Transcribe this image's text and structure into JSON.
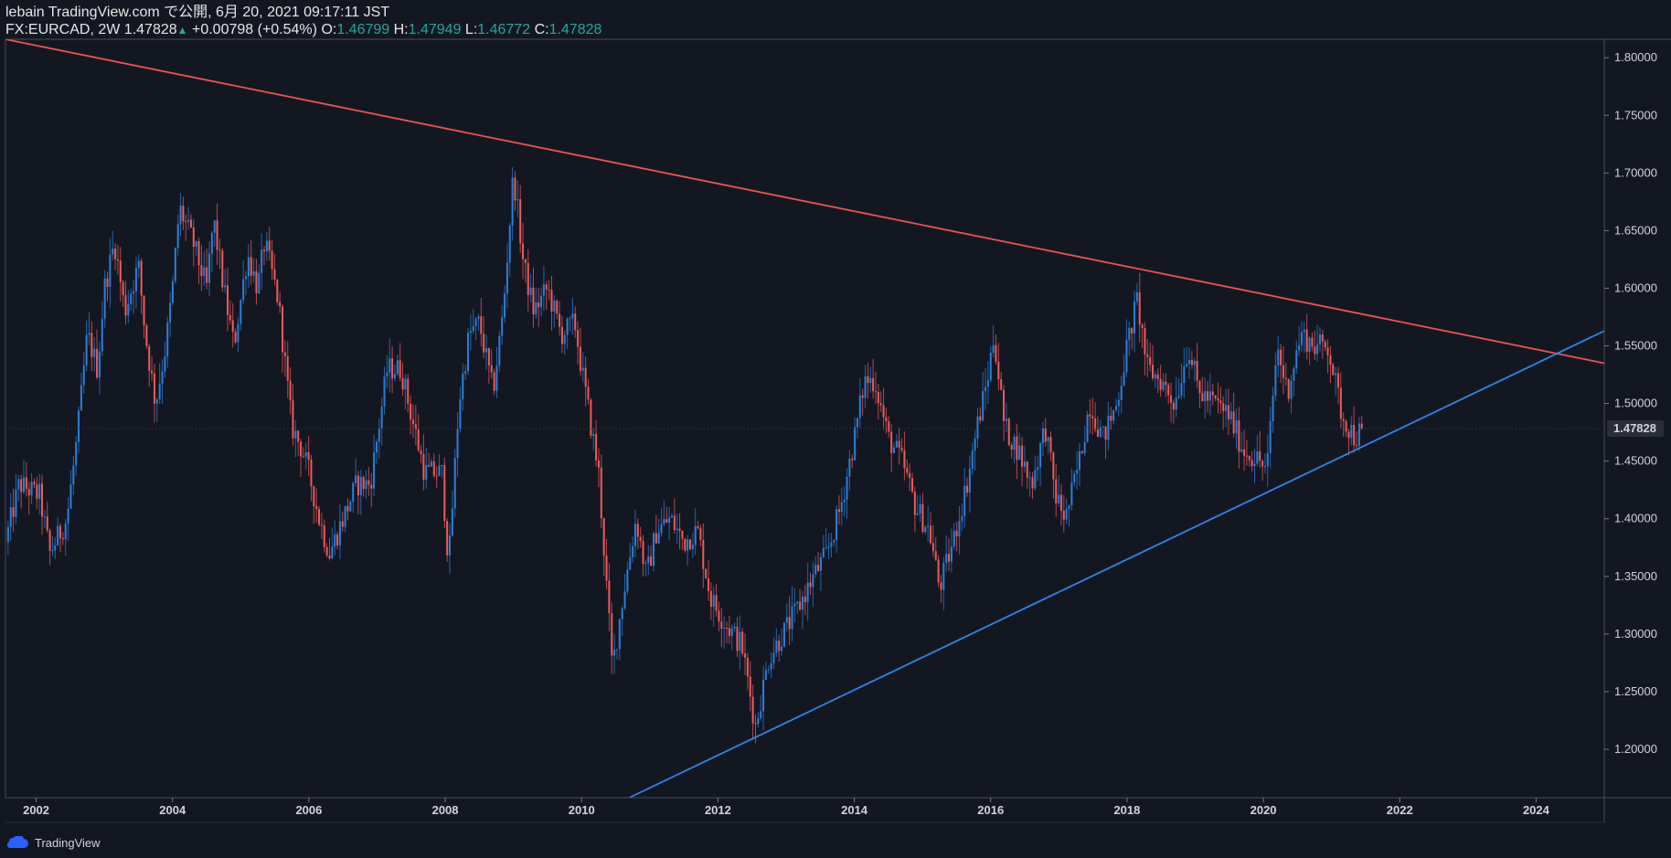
{
  "header": {
    "line1": "lebain TradingView.com で公開, 6月 20, 2021 09:17:11 JST",
    "symbol": "FX:EURCAD, 2W",
    "last": "1.47828",
    "change": "+0.00798 (+0.54%)",
    "o_label": "O:",
    "o_val": "1.46799",
    "h_label": "H:",
    "h_val": "1.47949",
    "l_label": "L:",
    "l_val": "1.46772",
    "c_label": "C:",
    "c_val": "1.47828"
  },
  "footer": {
    "brand": "TradingView"
  },
  "colors": {
    "background": "#131722",
    "up": "#2d7fd8",
    "down": "#ef5b5b",
    "resistance": "#ef5350",
    "support": "#2f86ea",
    "text": "#d1d4dc"
  },
  "chart_data": {
    "type": "candlestick",
    "symbol": "FX:EURCAD",
    "interval": "2W",
    "last_price": "1.47828",
    "xlim": [
      2001.55,
      2025.0
    ],
    "ylim": [
      1.158,
      1.816
    ],
    "x_ticks": [
      "2002",
      "2004",
      "2006",
      "2008",
      "2010",
      "2012",
      "2014",
      "2016",
      "2018",
      "2020",
      "2022",
      "2024"
    ],
    "y_ticks": [
      "1.80000",
      "1.75000",
      "1.70000",
      "1.65000",
      "1.60000",
      "1.55000",
      "1.50000",
      "1.45000",
      "1.40000",
      "1.35000",
      "1.30000",
      "1.25000",
      "1.20000"
    ],
    "close_path": [
      [
        2001.55,
        1.38
      ],
      [
        2001.75,
        1.43
      ],
      [
        2002.05,
        1.42
      ],
      [
        2002.2,
        1.37
      ],
      [
        2002.45,
        1.4
      ],
      [
        2002.6,
        1.47
      ],
      [
        2002.75,
        1.56
      ],
      [
        2002.9,
        1.53
      ],
      [
        2003.0,
        1.6
      ],
      [
        2003.15,
        1.64
      ],
      [
        2003.3,
        1.58
      ],
      [
        2003.5,
        1.62
      ],
      [
        2003.6,
        1.56
      ],
      [
        2003.75,
        1.5
      ],
      [
        2003.9,
        1.55
      ],
      [
        2004.0,
        1.6
      ],
      [
        2004.1,
        1.67
      ],
      [
        2004.3,
        1.64
      ],
      [
        2004.5,
        1.6
      ],
      [
        2004.6,
        1.66
      ],
      [
        2004.75,
        1.6
      ],
      [
        2004.9,
        1.55
      ],
      [
        2005.1,
        1.63
      ],
      [
        2005.25,
        1.6
      ],
      [
        2005.35,
        1.64
      ],
      [
        2005.55,
        1.59
      ],
      [
        2005.75,
        1.48
      ],
      [
        2005.9,
        1.46
      ],
      [
        2006.0,
        1.44
      ],
      [
        2006.15,
        1.4
      ],
      [
        2006.3,
        1.37
      ],
      [
        2006.5,
        1.4
      ],
      [
        2006.7,
        1.43
      ],
      [
        2006.9,
        1.43
      ],
      [
        2007.0,
        1.47
      ],
      [
        2007.15,
        1.53
      ],
      [
        2007.35,
        1.53
      ],
      [
        2007.5,
        1.49
      ],
      [
        2007.7,
        1.44
      ],
      [
        2007.95,
        1.44
      ],
      [
        2008.05,
        1.36
      ],
      [
        2008.2,
        1.5
      ],
      [
        2008.35,
        1.56
      ],
      [
        2008.5,
        1.57
      ],
      [
        2008.7,
        1.51
      ],
      [
        2008.85,
        1.58
      ],
      [
        2009.0,
        1.7
      ],
      [
        2009.15,
        1.62
      ],
      [
        2009.3,
        1.58
      ],
      [
        2009.5,
        1.6
      ],
      [
        2009.7,
        1.56
      ],
      [
        2009.9,
        1.57
      ],
      [
        2010.0,
        1.53
      ],
      [
        2010.25,
        1.44
      ],
      [
        2010.45,
        1.27
      ],
      [
        2010.6,
        1.33
      ],
      [
        2010.8,
        1.4
      ],
      [
        2010.95,
        1.35
      ],
      [
        2011.1,
        1.39
      ],
      [
        2011.3,
        1.4
      ],
      [
        2011.5,
        1.38
      ],
      [
        2011.7,
        1.39
      ],
      [
        2011.9,
        1.33
      ],
      [
        2012.1,
        1.31
      ],
      [
        2012.35,
        1.29
      ],
      [
        2012.55,
        1.22
      ],
      [
        2012.75,
        1.28
      ],
      [
        2012.95,
        1.3
      ],
      [
        2013.15,
        1.32
      ],
      [
        2013.4,
        1.35
      ],
      [
        2013.6,
        1.37
      ],
      [
        2013.8,
        1.41
      ],
      [
        2014.0,
        1.47
      ],
      [
        2014.15,
        1.52
      ],
      [
        2014.3,
        1.52
      ],
      [
        2014.5,
        1.47
      ],
      [
        2014.7,
        1.45
      ],
      [
        2014.9,
        1.41
      ],
      [
        2015.1,
        1.39
      ],
      [
        2015.25,
        1.34
      ],
      [
        2015.45,
        1.38
      ],
      [
        2015.65,
        1.43
      ],
      [
        2015.8,
        1.48
      ],
      [
        2015.95,
        1.52
      ],
      [
        2016.05,
        1.56
      ],
      [
        2016.2,
        1.48
      ],
      [
        2016.4,
        1.46
      ],
      [
        2016.6,
        1.43
      ],
      [
        2016.8,
        1.48
      ],
      [
        2016.95,
        1.42
      ],
      [
        2017.1,
        1.4
      ],
      [
        2017.3,
        1.45
      ],
      [
        2017.45,
        1.5
      ],
      [
        2017.65,
        1.47
      ],
      [
        2017.85,
        1.5
      ],
      [
        2018.0,
        1.55
      ],
      [
        2018.15,
        1.59
      ],
      [
        2018.3,
        1.53
      ],
      [
        2018.5,
        1.52
      ],
      [
        2018.7,
        1.5
      ],
      [
        2018.9,
        1.55
      ],
      [
        2019.05,
        1.51
      ],
      [
        2019.3,
        1.5
      ],
      [
        2019.5,
        1.49
      ],
      [
        2019.7,
        1.46
      ],
      [
        2019.95,
        1.45
      ],
      [
        2020.05,
        1.44
      ],
      [
        2020.2,
        1.55
      ],
      [
        2020.35,
        1.51
      ],
      [
        2020.55,
        1.56
      ],
      [
        2020.75,
        1.55
      ],
      [
        2020.95,
        1.55
      ],
      [
        2021.15,
        1.49
      ],
      [
        2021.35,
        1.47
      ],
      [
        2021.45,
        1.478
      ]
    ],
    "trendlines": [
      {
        "name": "resistance",
        "from": [
          2001.55,
          1.816
        ],
        "to": [
          2025.0,
          1.535
        ]
      },
      {
        "name": "support",
        "from": [
          2010.7,
          1.158
        ],
        "to": [
          2025.0,
          1.563
        ]
      }
    ]
  }
}
